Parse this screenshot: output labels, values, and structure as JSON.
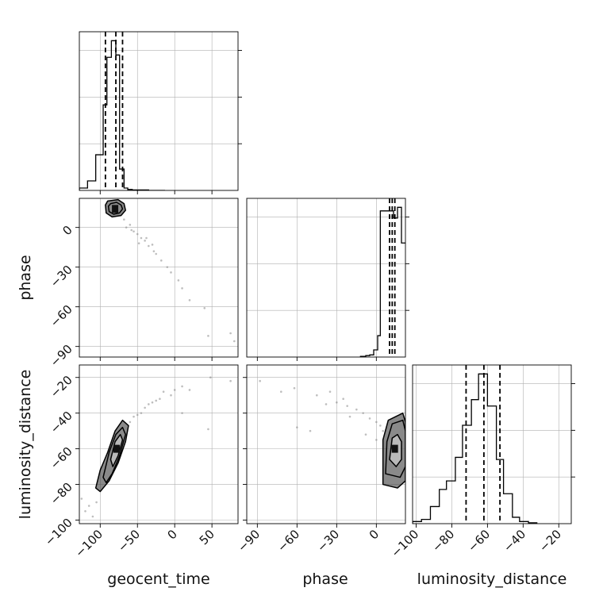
{
  "chart_data": {
    "type": "corner",
    "parameters": [
      "geocent_time",
      "phase",
      "luminosity_distance"
    ],
    "axes": {
      "geocent_time": {
        "lim": [
          -128,
          85
        ],
        "ticks": [
          -100,
          -50,
          0,
          50
        ],
        "tick_labels": [
          "−100",
          "−50",
          "0",
          "50"
        ]
      },
      "phase": {
        "lim": [
          -98,
          22
        ],
        "ticks": [
          -90,
          -60,
          -30,
          0
        ],
        "tick_labels": [
          "−90",
          "−60",
          "−30",
          "0"
        ]
      },
      "luminosity_distance": {
        "lim": [
          -102,
          -13
        ],
        "ticks": [
          -100,
          -80,
          -60,
          -40,
          -20
        ],
        "tick_labels": [
          "−100",
          "−80",
          "−60",
          "−40",
          "−20"
        ]
      }
    },
    "grid": true,
    "histograms": {
      "geocent_time": {
        "bin_edges": [
          -128,
          -117,
          -106,
          -96,
          -91,
          -85,
          -79,
          -74,
          -68,
          -63,
          -57,
          -46,
          -35,
          -24,
          -13
        ],
        "counts": [
          0.05,
          0.2,
          0.75,
          1.8,
          2.8,
          3.15,
          2.85,
          0.45,
          0.05,
          0.02,
          0.01,
          0.01,
          0.0,
          0.0
        ],
        "quantiles": [
          -93,
          -79,
          -70
        ]
      },
      "phase": {
        "bin_edges": [
          -12,
          -8,
          -5,
          -2,
          1,
          3,
          7,
          10,
          13,
          16,
          19,
          22
        ],
        "counts": [
          0.01,
          0.02,
          0.03,
          0.1,
          0.3,
          2.05,
          2.05,
          2.05,
          1.95,
          2.1,
          1.6
        ],
        "quantiles": [
          10,
          12,
          14
        ]
      },
      "luminosity_distance": {
        "bin_edges": [
          -102,
          -97,
          -92,
          -87,
          -83,
          -78,
          -74,
          -69,
          -65,
          -60,
          -55,
          -51,
          -46,
          -42,
          -37,
          -32
        ],
        "counts": [
          0.05,
          0.1,
          0.4,
          0.8,
          1.0,
          1.55,
          2.3,
          2.9,
          3.5,
          2.75,
          1.5,
          0.7,
          0.15,
          0.05,
          0.02
        ],
        "quantiles": [
          -72,
          -62,
          -53
        ]
      }
    },
    "scatter": {
      "phase_vs_geocent_time": {
        "center": [
          -80,
          14
        ],
        "points": [
          [
            -68,
            6
          ],
          [
            -60,
            2
          ],
          [
            -55,
            -3
          ],
          [
            -50,
            -5
          ],
          [
            -45,
            -8
          ],
          [
            -40,
            -10
          ],
          [
            -35,
            -14
          ],
          [
            -28,
            -18
          ],
          [
            -25,
            -20
          ],
          [
            -18,
            -25
          ],
          [
            -10,
            -30
          ],
          [
            -5,
            -34
          ],
          [
            5,
            -40
          ],
          [
            10,
            -46
          ],
          [
            20,
            -55
          ],
          [
            40,
            -61
          ],
          [
            45,
            -82
          ],
          [
            75,
            -80
          ],
          [
            80,
            -86
          ],
          [
            -65,
            0
          ],
          [
            -58,
            -2
          ],
          [
            -48,
            -12
          ],
          [
            -38,
            -8
          ],
          [
            -30,
            -13
          ]
        ]
      },
      "luminosity_distance_vs_geocent_time": {
        "center": [
          -78,
          -60
        ],
        "points": [
          [
            -60,
            -45
          ],
          [
            -55,
            -42
          ],
          [
            -50,
            -41
          ],
          [
            -45,
            -40
          ],
          [
            -40,
            -37
          ],
          [
            -35,
            -35
          ],
          [
            -30,
            -34
          ],
          [
            -25,
            -33
          ],
          [
            -20,
            -32
          ],
          [
            -15,
            -28
          ],
          [
            -5,
            -30
          ],
          [
            0,
            -27
          ],
          [
            10,
            -25
          ],
          [
            10,
            -40
          ],
          [
            20,
            -27
          ],
          [
            45,
            -49
          ],
          [
            48,
            -20
          ],
          [
            75,
            -22
          ],
          [
            -115,
            -92
          ],
          [
            -120,
            -95
          ],
          [
            -110,
            -98
          ],
          [
            -125,
            -88
          ],
          [
            -105,
            -90
          ]
        ]
      },
      "luminosity_distance_vs_phase": {
        "center": [
          14,
          -60
        ],
        "points": [
          [
            -88,
            -22
          ],
          [
            -72,
            -28
          ],
          [
            -62,
            -26
          ],
          [
            -45,
            -30
          ],
          [
            -38,
            -35
          ],
          [
            -30,
            -34
          ],
          [
            -22,
            -36
          ],
          [
            -15,
            -38
          ],
          [
            -10,
            -40
          ],
          [
            -5,
            -43
          ],
          [
            0,
            -45
          ],
          [
            3,
            -47
          ],
          [
            5,
            -50
          ],
          [
            -20,
            -42
          ],
          [
            -60,
            -48
          ],
          [
            -50,
            -50
          ],
          [
            -25,
            -32
          ],
          [
            -35,
            -28
          ],
          [
            -8,
            -52
          ],
          [
            0,
            -55
          ]
        ]
      }
    },
    "contours": {
      "phase_vs_geocent_time": [
        [
          [
            -86,
            18
          ],
          [
            -78,
            19
          ],
          [
            -72,
            17
          ],
          [
            -70,
            14
          ],
          [
            -74,
            11
          ],
          [
            -82,
            10
          ],
          [
            -88,
            12
          ],
          [
            -89,
            16
          ]
        ],
        [
          [
            -90,
            20
          ],
          [
            -76,
            21
          ],
          [
            -68,
            18
          ],
          [
            -66,
            13
          ],
          [
            -72,
            9
          ],
          [
            -84,
            8
          ],
          [
            -92,
            11
          ],
          [
            -93,
            17
          ]
        ]
      ],
      "luminosity_distance_vs_geocent_time": [
        [
          [
            -86,
            -66
          ],
          [
            -80,
            -56
          ],
          [
            -73,
            -52
          ],
          [
            -70,
            -55
          ],
          [
            -76,
            -64
          ],
          [
            -83,
            -70
          ]
        ],
        [
          [
            -96,
            -76
          ],
          [
            -88,
            -62
          ],
          [
            -79,
            -52
          ],
          [
            -70,
            -48
          ],
          [
            -66,
            -52
          ],
          [
            -74,
            -64
          ],
          [
            -84,
            -74
          ],
          [
            -92,
            -79
          ]
        ],
        [
          [
            -106,
            -82
          ],
          [
            -100,
            -72
          ],
          [
            -90,
            -62
          ],
          [
            -80,
            -50
          ],
          [
            -70,
            -44
          ],
          [
            -62,
            -47
          ],
          [
            -66,
            -56
          ],
          [
            -76,
            -68
          ],
          [
            -88,
            -78
          ],
          [
            -100,
            -84
          ]
        ]
      ],
      "luminosity_distance_vs_phase": [
        [
          [
            10,
            -66
          ],
          [
            12,
            -54
          ],
          [
            16,
            -52
          ],
          [
            19,
            -56
          ],
          [
            19,
            -66
          ],
          [
            15,
            -70
          ]
        ],
        [
          [
            7,
            -74
          ],
          [
            8,
            -56
          ],
          [
            12,
            -46
          ],
          [
            20,
            -44
          ],
          [
            22,
            -50
          ],
          [
            22,
            -70
          ],
          [
            18,
            -76
          ]
        ],
        [
          [
            5,
            -80
          ],
          [
            5,
            -55
          ],
          [
            9,
            -44
          ],
          [
            20,
            -40
          ],
          [
            22,
            -45
          ],
          [
            22,
            -78
          ],
          [
            16,
            -82
          ]
        ]
      ]
    },
    "labels": {
      "x": [
        "geocent_time",
        "phase",
        "luminosity_distance"
      ],
      "y": [
        "phase",
        "luminosity_distance"
      ]
    }
  }
}
